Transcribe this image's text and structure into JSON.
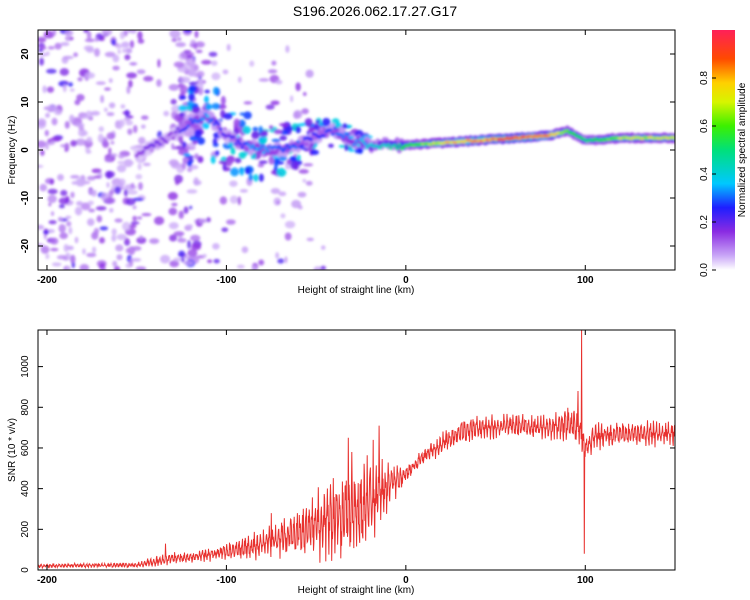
{
  "figure": {
    "title": "S196.2026.062.17.27.G17"
  },
  "chart_data": [
    {
      "type": "heatmap",
      "name": "spectrogram",
      "xlabel": "Height of straight line (km)",
      "ylabel": "Frequency (Hz)",
      "xlim": [
        -205,
        150
      ],
      "ylim": [
        -25,
        25
      ],
      "xticks": [
        -200,
        -100,
        0,
        100
      ],
      "yticks": [
        -20,
        -10,
        0,
        10,
        20
      ],
      "colorbar": {
        "label": "Normalized spectral amplitude",
        "range": [
          0,
          1
        ],
        "ticks": [
          "0.0",
          "0.2",
          "0.4",
          "0.6",
          "0.8"
        ],
        "tick_values": [
          0,
          0.2,
          0.4,
          0.6,
          0.8
        ]
      },
      "ridge": {
        "description_points_x": [
          -150,
          -140,
          -130,
          -120,
          -110,
          -100,
          -90,
          -80,
          -70,
          -60,
          -50,
          -40,
          -30,
          -20,
          -10,
          0,
          20,
          40,
          60,
          80,
          90,
          100,
          120,
          150
        ],
        "frequency_hz": [
          -1,
          1,
          3,
          6,
          7,
          3,
          1,
          0,
          0,
          1,
          3,
          4,
          2,
          1,
          1,
          1,
          1.5,
          2,
          2.5,
          3,
          4,
          2,
          2.5,
          2.5
        ],
        "amplitude": [
          0.15,
          0.2,
          0.15,
          0.3,
          0.35,
          0.2,
          0.3,
          0.35,
          0.3,
          0.3,
          0.25,
          0.3,
          0.35,
          0.4,
          0.45,
          0.55,
          0.75,
          0.85,
          0.9,
          0.85,
          0.6,
          0.5,
          0.7,
          0.7
        ]
      }
    },
    {
      "type": "line",
      "name": "snr",
      "xlabel": "Height of straight line (km)",
      "ylabel": "SNR (10 * v/v)",
      "xlim": [
        -205,
        150
      ],
      "ylim": [
        0,
        1180
      ],
      "xticks": [
        -200,
        -100,
        0,
        100
      ],
      "yticks": [
        0,
        200,
        400,
        600,
        800,
        1000
      ],
      "color": "#e8312e",
      "envelope": {
        "x": [
          -205,
          -150,
          -140,
          -130,
          -120,
          -100,
          -80,
          -60,
          -40,
          -30,
          -20,
          -10,
          0,
          10,
          20,
          30,
          40,
          60,
          80,
          95,
          100,
          105,
          120,
          150
        ],
        "mean": [
          20,
          25,
          40,
          60,
          60,
          90,
          130,
          180,
          260,
          300,
          360,
          420,
          470,
          560,
          620,
          680,
          700,
          710,
          700,
          720,
          600,
          660,
          670,
          670
        ],
        "amplitude": [
          10,
          12,
          25,
          30,
          25,
          40,
          70,
          120,
          200,
          230,
          250,
          120,
          40,
          40,
          50,
          60,
          60,
          60,
          60,
          100,
          60,
          70,
          60,
          60
        ]
      },
      "spikes": [
        {
          "x": 98,
          "y": 1180
        },
        {
          "x": 99.5,
          "y": 80
        },
        {
          "x": 96,
          "y": 880
        },
        {
          "x": -30,
          "y": 580
        },
        {
          "x": -15,
          "y": 710
        },
        {
          "x": -32,
          "y": 650
        },
        {
          "x": -134,
          "y": 130
        },
        {
          "x": -75,
          "y": 280
        }
      ]
    }
  ]
}
